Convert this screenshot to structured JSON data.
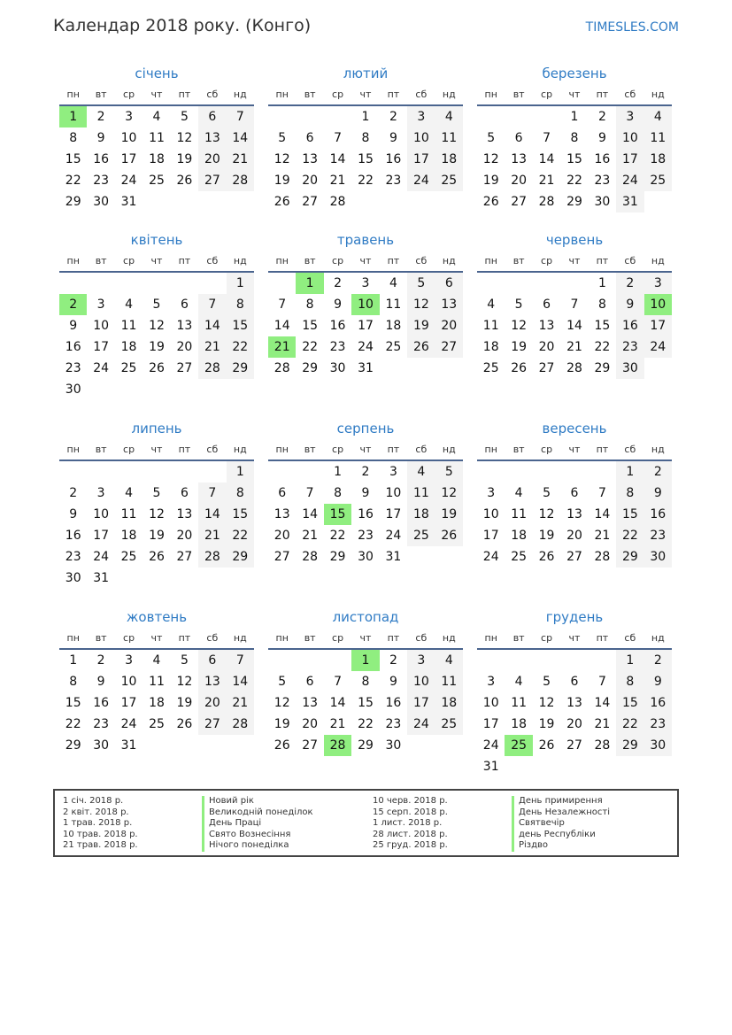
{
  "header": {
    "title": "Календар 2018 року. (Конго)",
    "site": "TIMESLES.COM"
  },
  "weekdays": [
    "пн",
    "вт",
    "ср",
    "чт",
    "пт",
    "сб",
    "нд"
  ],
  "colors": {
    "holiday": "#90ee80",
    "weekend": "#f3f3f3",
    "accent": "#2f7bc4"
  },
  "months": [
    {
      "name": "січень",
      "start": 0,
      "days": 31,
      "holidays": [
        1
      ]
    },
    {
      "name": "лютий",
      "start": 3,
      "days": 28,
      "holidays": []
    },
    {
      "name": "березень",
      "start": 3,
      "days": 31,
      "holidays": []
    },
    {
      "name": "квітень",
      "start": 6,
      "days": 30,
      "holidays": [
        2
      ]
    },
    {
      "name": "травень",
      "start": 1,
      "days": 31,
      "holidays": [
        1,
        10,
        21
      ]
    },
    {
      "name": "червень",
      "start": 4,
      "days": 30,
      "holidays": [
        10
      ]
    },
    {
      "name": "липень",
      "start": 6,
      "days": 31,
      "holidays": []
    },
    {
      "name": "серпень",
      "start": 2,
      "days": 31,
      "holidays": [
        15
      ]
    },
    {
      "name": "вересень",
      "start": 5,
      "days": 30,
      "holidays": []
    },
    {
      "name": "жовтень",
      "start": 0,
      "days": 31,
      "holidays": []
    },
    {
      "name": "листопад",
      "start": 3,
      "days": 30,
      "holidays": [
        1,
        28
      ]
    },
    {
      "name": "грудень",
      "start": 5,
      "days": 31,
      "holidays": [
        25
      ]
    }
  ],
  "legend": [
    {
      "date": "1 січ. 2018 р.",
      "name": "Новий рік"
    },
    {
      "date": "2 квіт. 2018 р.",
      "name": "Великодній понеділок"
    },
    {
      "date": "1 трав. 2018 р.",
      "name": "День Праці"
    },
    {
      "date": "10 трав. 2018 р.",
      "name": "Свято Вознесіння"
    },
    {
      "date": "21 трав. 2018 р.",
      "name": "Нічого понеділка"
    },
    {
      "date": "10 черв. 2018 р.",
      "name": "День примирення"
    },
    {
      "date": "15 серп. 2018 р.",
      "name": "День Незалежності"
    },
    {
      "date": "1 лист. 2018 р.",
      "name": "Святвечір"
    },
    {
      "date": "28 лист. 2018 р.",
      "name": "день Республіки"
    },
    {
      "date": "25 груд. 2018 р.",
      "name": "Різдво"
    }
  ]
}
